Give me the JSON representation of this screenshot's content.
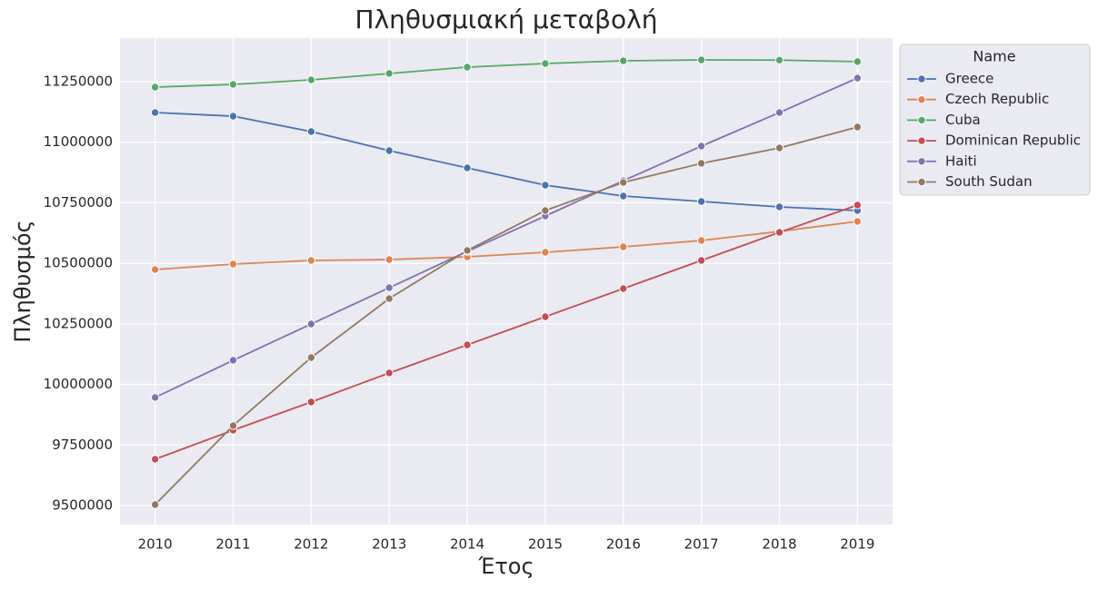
{
  "chart_data": {
    "type": "line",
    "title": "Πληθυσμιακή μεταβολή",
    "x_label": "Έτος",
    "y_label": "Πληθυσμός",
    "x": [
      2010,
      2011,
      2012,
      2013,
      2014,
      2015,
      2016,
      2017,
      2018,
      2019
    ],
    "xlim": [
      2009.55,
      2019.45
    ],
    "xticks": [
      2010,
      2011,
      2012,
      2013,
      2014,
      2015,
      2016,
      2017,
      2018,
      2019
    ],
    "ylim": [
      9421300,
      11430000
    ],
    "yticks": [
      9500000,
      9750000,
      10000000,
      10250000,
      10500000,
      10750000,
      11000000,
      11250000
    ],
    "grid": true,
    "legend_title": "Name",
    "legend_position": "outside-upper-right",
    "series": [
      {
        "name": "Greece",
        "color": "#4c72b0",
        "values": [
          11122700,
          11107700,
          11044000,
          10965300,
          10894100,
          10822900,
          10777900,
          10755400,
          10733000,
          10718000
        ]
      },
      {
        "name": "Czech Republic",
        "color": "#dd8452",
        "values": [
          10474400,
          10496900,
          10511900,
          10515600,
          10526800,
          10545600,
          10568100,
          10594300,
          10631800,
          10673000
        ]
      },
      {
        "name": "Cuba",
        "color": "#55a868",
        "values": [
          11227600,
          11238900,
          11257600,
          11283900,
          11310100,
          11325100,
          11336300,
          11340100,
          11339000,
          11333000
        ]
      },
      {
        "name": "Dominican Republic",
        "color": "#c44e52",
        "values": [
          9691100,
          9811100,
          9927200,
          10047200,
          10163300,
          10279500,
          10395700,
          10511900,
          10628000,
          10740500
        ]
      },
      {
        "name": "Haiti",
        "color": "#8172b3",
        "values": [
          9946000,
          10099600,
          10249500,
          10399400,
          10549300,
          10695500,
          10841600,
          10984000,
          11122700,
          11265100
        ]
      },
      {
        "name": "South Sudan",
        "color": "#937860",
        "values": [
          9503700,
          9829800,
          10110900,
          10354500,
          10553100,
          10718000,
          10834100,
          10912800,
          10976600,
          11062700
        ]
      }
    ]
  }
}
